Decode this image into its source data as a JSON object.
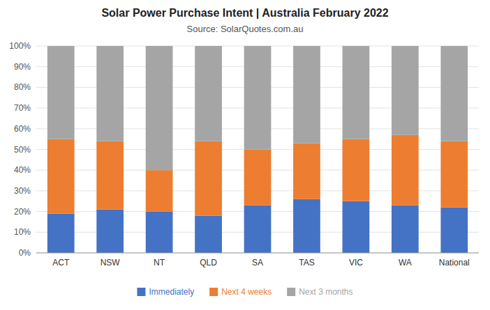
{
  "chart_data": {
    "type": "bar",
    "stacked": true,
    "title": "Solar Power Purchase Intent | Australia February 2022",
    "subtitle": "Source: SolarQuotes.com.au",
    "categories": [
      "ACT",
      "NSW",
      "NT",
      "QLD",
      "SA",
      "TAS",
      "VIC",
      "WA",
      "National"
    ],
    "series": [
      {
        "name": "Immediately",
        "color": "#4472C4",
        "values": [
          19,
          21,
          20,
          18,
          23,
          26,
          25,
          23,
          22
        ]
      },
      {
        "name": "Next 4 weeks",
        "color": "#ED7D31",
        "values": [
          36,
          33,
          20,
          36,
          27,
          27,
          30,
          34,
          32
        ]
      },
      {
        "name": "Next 3 months",
        "color": "#A5A5A5",
        "values": [
          45,
          46,
          60,
          46,
          50,
          47,
          45,
          43,
          46
        ]
      }
    ],
    "ylim": [
      0,
      100
    ],
    "yticks": [
      {
        "value": 0,
        "label": "0%"
      },
      {
        "value": 10,
        "label": "10%"
      },
      {
        "value": 20,
        "label": "20%"
      },
      {
        "value": 30,
        "label": "30%"
      },
      {
        "value": 40,
        "label": "40%"
      },
      {
        "value": 50,
        "label": "50%"
      },
      {
        "value": 60,
        "label": "60%"
      },
      {
        "value": 70,
        "label": "70%"
      },
      {
        "value": 80,
        "label": "80%"
      },
      {
        "value": 90,
        "label": "90%"
      },
      {
        "value": 100,
        "label": "100%"
      }
    ],
    "grid": true,
    "legend": "bottom"
  }
}
